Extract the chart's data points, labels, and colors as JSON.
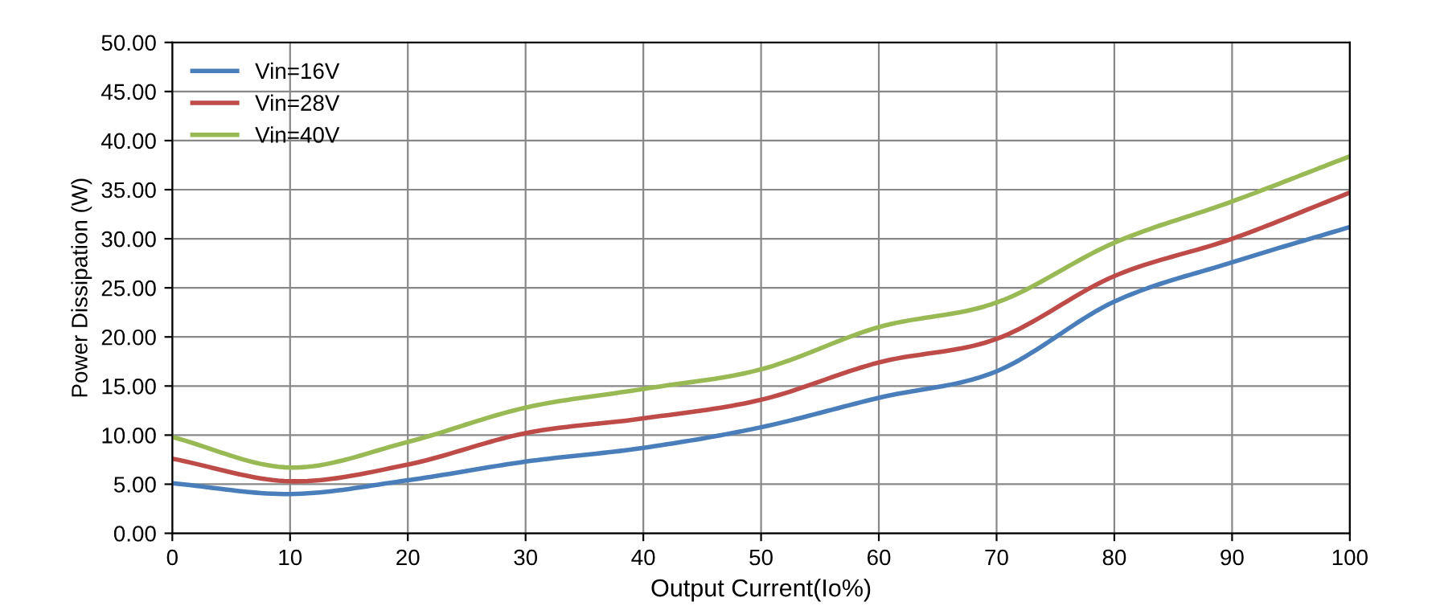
{
  "chart_data": {
    "type": "line",
    "xlabel": "Output Current(Io%)",
    "ylabel": "Power Dissipation (W)",
    "x": [
      0,
      10,
      20,
      30,
      40,
      50,
      60,
      70,
      80,
      90,
      100
    ],
    "series": [
      {
        "name": "Vin=16V",
        "color": "#4a7ebb",
        "values": [
          5.1,
          4.0,
          5.4,
          7.3,
          8.7,
          10.8,
          13.8,
          16.5,
          23.6,
          27.6,
          31.2
        ]
      },
      {
        "name": "Vin=28V",
        "color": "#be4b48",
        "values": [
          7.6,
          5.3,
          7.0,
          10.2,
          11.7,
          13.6,
          17.4,
          19.8,
          26.2,
          30.0,
          34.7
        ]
      },
      {
        "name": "Vin=40V",
        "color": "#98b954",
        "values": [
          9.8,
          6.7,
          9.3,
          12.8,
          14.7,
          16.7,
          21.0,
          23.5,
          29.6,
          33.8,
          38.4
        ]
      }
    ],
    "xlim": [
      0,
      100
    ],
    "xticks": [
      0,
      10,
      20,
      30,
      40,
      50,
      60,
      70,
      80,
      90,
      100
    ],
    "ylim": [
      0,
      50
    ],
    "yticks": [
      {
        "value": 0,
        "label": "0.00"
      },
      {
        "value": 5,
        "label": "5.00"
      },
      {
        "value": 10,
        "label": "10.00"
      },
      {
        "value": 15,
        "label": "15.00"
      },
      {
        "value": 20,
        "label": "20.00"
      },
      {
        "value": 25,
        "label": "25.00"
      },
      {
        "value": 30,
        "label": "30.00"
      },
      {
        "value": 35,
        "label": "35.00"
      },
      {
        "value": 40,
        "label": "40.00"
      },
      {
        "value": 45,
        "label": "45.00"
      },
      {
        "value": 50,
        "label": "50.00"
      }
    ],
    "grid": true,
    "legend": "top left",
    "marker": "none",
    "line_style": "solid"
  }
}
